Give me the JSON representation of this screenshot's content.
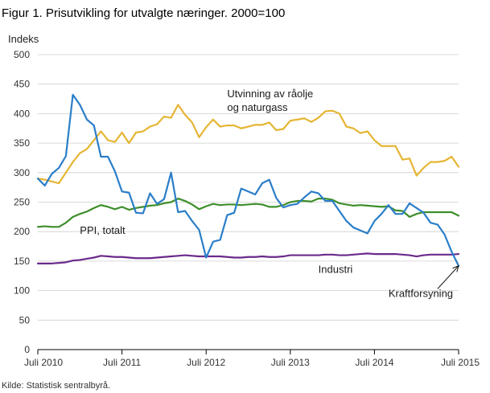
{
  "chart_data": {
    "type": "line",
    "title": "Figur 1. Prisutvikling for utvalgte næringer. 2000=100",
    "ylabel": "Indeks",
    "ylim": [
      0,
      500
    ],
    "yticks": [
      0,
      50,
      100,
      150,
      200,
      250,
      300,
      350,
      400,
      450,
      500
    ],
    "xlim": [
      "2010-07",
      "2015-07"
    ],
    "xticks": [
      {
        "date": "2010-07",
        "label": "Juli 2010"
      },
      {
        "date": "2011-07",
        "label": "Juli 2011"
      },
      {
        "date": "2012-07",
        "label": "Juli 2012"
      },
      {
        "date": "2013-07",
        "label": "Juli 2013"
      },
      {
        "date": "2014-07",
        "label": "Juli 2014"
      },
      {
        "date": "2015-07",
        "label": "Juli 2015"
      }
    ],
    "grid": "horizontal",
    "source": "Kilde: Statistisk sentralbyrå.",
    "x": [
      "2010-07",
      "2010-08",
      "2010-09",
      "2010-10",
      "2010-11",
      "2010-12",
      "2011-01",
      "2011-02",
      "2011-03",
      "2011-04",
      "2011-05",
      "2011-06",
      "2011-07",
      "2011-08",
      "2011-09",
      "2011-10",
      "2011-11",
      "2011-12",
      "2012-01",
      "2012-02",
      "2012-03",
      "2012-04",
      "2012-05",
      "2012-06",
      "2012-07",
      "2012-08",
      "2012-09",
      "2012-10",
      "2012-11",
      "2012-12",
      "2013-01",
      "2013-02",
      "2013-03",
      "2013-04",
      "2013-05",
      "2013-06",
      "2013-07",
      "2013-08",
      "2013-09",
      "2013-10",
      "2013-11",
      "2013-12",
      "2014-01",
      "2014-02",
      "2014-03",
      "2014-04",
      "2014-05",
      "2014-06",
      "2014-07",
      "2014-08",
      "2014-09",
      "2014-10",
      "2014-11",
      "2014-12",
      "2015-01",
      "2015-02",
      "2015-03",
      "2015-04",
      "2015-05",
      "2015-06",
      "2015-07"
    ],
    "series": [
      {
        "name": "Utvinning av råolje og naturgass",
        "label_lines": [
          "Utvinning av råolje",
          "og naturgass"
        ],
        "color": "#e5b533",
        "values": [
          290,
          288,
          285,
          282,
          300,
          318,
          333,
          340,
          355,
          370,
          355,
          352,
          368,
          350,
          368,
          370,
          378,
          382,
          395,
          393,
          415,
          398,
          385,
          360,
          377,
          390,
          378,
          380,
          380,
          375,
          378,
          381,
          381,
          385,
          372,
          374,
          388,
          390,
          392,
          386,
          393,
          404,
          405,
          400,
          378,
          375,
          367,
          370,
          355,
          345,
          345,
          345,
          322,
          324,
          295,
          308,
          318,
          318,
          320,
          327,
          310
        ],
        "label_anchor": {
          "date": "2012-10",
          "value": 428
        }
      },
      {
        "name": "PPI, totalt",
        "color": "#3e8e2b",
        "values": [
          208,
          209,
          208,
          208,
          215,
          225,
          230,
          234,
          240,
          245,
          242,
          238,
          242,
          237,
          240,
          242,
          244,
          245,
          248,
          250,
          256,
          252,
          246,
          238,
          243,
          247,
          245,
          246,
          246,
          245,
          246,
          247,
          246,
          242,
          242,
          245,
          250,
          252,
          252,
          251,
          256,
          256,
          254,
          248,
          246,
          244,
          245,
          244,
          243,
          242,
          243,
          236,
          235,
          225,
          230,
          233,
          233,
          233,
          233,
          233,
          227
        ],
        "label_anchor": {
          "date": "2011-01",
          "value": 196
        }
      },
      {
        "name": "Industri",
        "color": "#6a2a8b",
        "values": [
          146,
          146,
          146,
          147,
          148,
          151,
          152,
          154,
          156,
          159,
          158,
          157,
          157,
          156,
          155,
          155,
          155,
          156,
          157,
          158,
          159,
          160,
          159,
          158,
          158,
          158,
          158,
          157,
          156,
          156,
          157,
          157,
          158,
          157,
          157,
          158,
          160,
          160,
          160,
          160,
          160,
          161,
          161,
          160,
          160,
          161,
          162,
          163,
          162,
          162,
          162,
          162,
          161,
          160,
          158,
          160,
          161,
          161,
          161,
          161,
          162
        ],
        "label_anchor": {
          "date": "2013-11",
          "value": 130
        }
      },
      {
        "name": "Kraftforsyning",
        "color": "#2a7ec8",
        "values": [
          290,
          278,
          298,
          308,
          328,
          432,
          415,
          390,
          380,
          327,
          327,
          302,
          268,
          266,
          232,
          231,
          265,
          247,
          255,
          300,
          233,
          235,
          218,
          203,
          156,
          183,
          186,
          228,
          232,
          273,
          268,
          263,
          282,
          288,
          257,
          241,
          245,
          247,
          258,
          268,
          265,
          252,
          252,
          235,
          218,
          207,
          202,
          197,
          218,
          230,
          245,
          230,
          230,
          248,
          240,
          232,
          215,
          212,
          195,
          166,
          142
        ],
        "label_anchor": {
          "date": "2014-09",
          "value": 89
        },
        "arrow": {
          "from": {
            "date": "2015-04",
            "value": 103
          },
          "to": {
            "date": "2015-07",
            "value": 142
          }
        }
      }
    ]
  }
}
